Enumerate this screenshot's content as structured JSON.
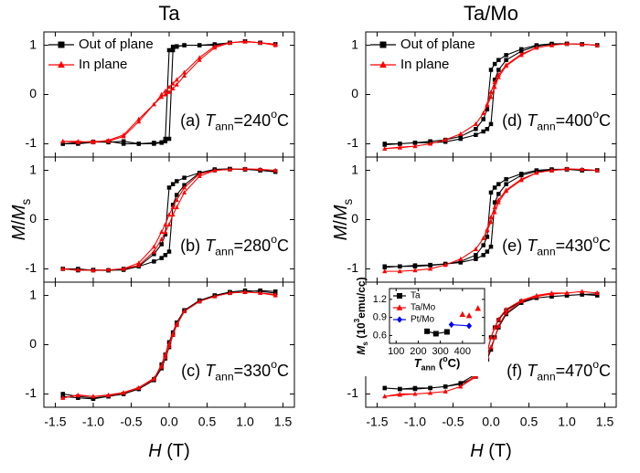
{
  "chart_data": [
    {
      "type": "line",
      "title": "Ta",
      "legend": "upper left",
      "annotation": [
        "(a)",
        "T",
        "ann",
        "=240",
        "o",
        "C"
      ],
      "xlim": [
        -1.65,
        1.65
      ],
      "ylim": [
        -1.27,
        1.27
      ],
      "yticks": [
        -1,
        0,
        1
      ],
      "x": [
        1.4,
        1.2,
        1.0,
        0.8,
        0.6,
        0.4,
        0.2,
        0.1,
        0.05,
        0,
        -0.05,
        -0.1,
        -0.2,
        -0.4,
        -0.6,
        -0.8,
        -1.0,
        -1.2,
        -1.4,
        -1.4,
        -1.2,
        -1.0,
        -0.8,
        -0.6,
        -0.4,
        -0.2,
        -0.1,
        -0.05,
        0,
        0.05,
        0.1,
        0.2,
        0.4,
        0.6,
        0.8,
        1.0,
        1.2,
        1.4
      ],
      "series": [
        {
          "name": "Out of plane",
          "color": "#000000",
          "marker": "square",
          "values": [
            1.02,
            1.05,
            1.08,
            1.05,
            1.0,
            1.0,
            1.0,
            0.98,
            0.97,
            0.9,
            -0.9,
            -0.97,
            -0.98,
            -1.0,
            -1.0,
            -0.95,
            -0.97,
            -1.0,
            -1.0,
            -1.0,
            -0.98,
            -0.96,
            -0.97,
            -0.95,
            -1.0,
            -1.0,
            -0.98,
            -0.95,
            -0.9,
            0.9,
            0.97,
            1.0,
            1.0,
            1.02,
            1.05,
            1.08,
            1.05,
            1.02
          ]
        },
        {
          "name": "In plane",
          "color": "#ff0000",
          "marker": "triangle",
          "values": [
            1.0,
            1.05,
            1.07,
            1.05,
            0.98,
            0.75,
            0.45,
            0.3,
            0.22,
            0.15,
            0.07,
            0,
            -0.2,
            -0.55,
            -0.85,
            -0.95,
            -0.95,
            -0.97,
            -0.95,
            -0.95,
            -0.95,
            -0.97,
            -0.93,
            -0.82,
            -0.5,
            -0.2,
            -0.05,
            0.0,
            0.05,
            0.12,
            0.2,
            0.38,
            0.7,
            0.95,
            1.05,
            1.08,
            1.05,
            1.02
          ]
        }
      ]
    },
    {
      "type": "line",
      "ylabel": [
        "M",
        "/",
        "M",
        "s"
      ],
      "annotation": [
        "(b)",
        "T",
        "ann",
        "=280",
        "o",
        "C"
      ],
      "xlim": [
        -1.65,
        1.65
      ],
      "ylim": [
        -1.27,
        1.27
      ],
      "yticks": [
        -1,
        0,
        1
      ],
      "x": [
        1.4,
        1.2,
        1.0,
        0.8,
        0.6,
        0.4,
        0.2,
        0.1,
        0.05,
        0,
        -0.05,
        -0.1,
        -0.2,
        -0.4,
        -0.6,
        -0.8,
        -1.0,
        -1.2,
        -1.4,
        -1.4,
        -1.2,
        -1.0,
        -0.8,
        -0.6,
        -0.4,
        -0.2,
        -0.1,
        -0.05,
        0,
        0.05,
        0.1,
        0.2,
        0.4,
        0.6,
        0.8,
        1.0,
        1.2,
        1.4
      ],
      "series": [
        {
          "color": "#000000",
          "marker": "square",
          "values": [
            0.97,
            1.0,
            1.02,
            1.02,
            1.0,
            0.95,
            0.85,
            0.78,
            0.72,
            0.65,
            -0.3,
            -0.5,
            -0.7,
            -0.95,
            -1.02,
            -1.03,
            -1.03,
            -1.0,
            -1.0,
            -1.0,
            -1.03,
            -1.02,
            -1.03,
            -1.0,
            -0.95,
            -0.85,
            -0.78,
            -0.72,
            -0.65,
            0.3,
            0.5,
            0.7,
            0.95,
            1.02,
            1.03,
            1.02,
            1.0,
            0.98
          ]
        },
        {
          "color": "#ff0000",
          "marker": "triangle",
          "values": [
            1.0,
            1.02,
            1.03,
            1.02,
            1.0,
            0.93,
            0.65,
            0.4,
            0.25,
            0.1,
            -0.1,
            -0.25,
            -0.55,
            -0.88,
            -1.0,
            -1.02,
            -1.03,
            -1.02,
            -1.0,
            -1.0,
            -1.02,
            -1.03,
            -1.02,
            -1.0,
            -0.93,
            -0.65,
            -0.4,
            -0.25,
            -0.1,
            0.1,
            0.25,
            0.55,
            0.88,
            1.0,
            1.02,
            1.03,
            1.02,
            1.0
          ]
        }
      ]
    },
    {
      "type": "line",
      "xlabel": [
        "H",
        "(T)"
      ],
      "annotation": [
        "(c)",
        "T",
        "ann",
        "=330",
        "o",
        "C"
      ],
      "xlim": [
        -1.65,
        1.65
      ],
      "ylim": [
        -1.27,
        1.27
      ],
      "yticks": [
        -1,
        0,
        1
      ],
      "xticks": [
        -1.5,
        {
          "value": -1.0,
          "label": "-1.0"
        },
        -0.5,
        {
          "value": 0,
          "label": "0.0"
        },
        0.5,
        {
          "value": 1.0,
          "label": "1.0"
        },
        1.5
      ],
      "x": [
        1.4,
        1.2,
        1.0,
        0.8,
        0.6,
        0.4,
        0.2,
        0.1,
        0.05,
        0,
        -0.05,
        -0.1,
        -0.2,
        -0.4,
        -0.6,
        -0.8,
        -1.0,
        -1.2,
        -1.4,
        -1.4,
        -1.2,
        -1.0,
        -0.8,
        -0.6,
        -0.4,
        -0.2,
        -0.1,
        -0.05,
        0,
        0.05,
        0.1,
        0.2,
        0.4,
        0.6,
        0.8,
        1.0,
        1.2,
        1.4
      ],
      "series": [
        {
          "color": "#000000",
          "marker": "square",
          "values": [
            1.05,
            1.08,
            1.1,
            1.07,
            1.0,
            0.9,
            0.7,
            0.45,
            0.25,
            0.05,
            -0.2,
            -0.4,
            -0.7,
            -0.9,
            -1.0,
            -1.05,
            -1.08,
            -1.05,
            -1.0,
            -1.05,
            -1.08,
            -1.1,
            -1.05,
            -1.0,
            -0.9,
            -0.72,
            -0.48,
            -0.28,
            -0.05,
            0.2,
            0.4,
            0.68,
            0.88,
            1.0,
            1.05,
            1.07,
            1.1,
            1.08
          ]
        },
        {
          "color": "#ff0000",
          "marker": "triangle",
          "values": [
            1.0,
            1.05,
            1.07,
            1.05,
            0.98,
            0.88,
            0.68,
            0.42,
            0.22,
            0.02,
            -0.2,
            -0.42,
            -0.7,
            -0.88,
            -0.98,
            -1.03,
            -1.05,
            -1.02,
            -1.08,
            -1.08,
            -1.03,
            -1.05,
            -1.02,
            -0.97,
            -0.87,
            -0.68,
            -0.45,
            -0.25,
            -0.03,
            0.2,
            0.4,
            0.68,
            0.88,
            0.98,
            1.05,
            1.07,
            1.05,
            1.02
          ]
        }
      ]
    },
    {
      "type": "line",
      "title": "Ta/Mo",
      "legend": "upper left",
      "annotation": [
        "(d)",
        "T",
        "ann",
        "=400",
        "o",
        "C"
      ],
      "xlim": [
        -1.65,
        1.65
      ],
      "ylim": [
        -1.27,
        1.27
      ],
      "yticks": [
        -1,
        0,
        1
      ],
      "x": [
        1.4,
        1.2,
        1.0,
        0.8,
        0.6,
        0.4,
        0.2,
        0.1,
        0.05,
        0,
        -0.05,
        -0.1,
        -0.2,
        -0.4,
        -0.6,
        -0.8,
        -1.0,
        -1.2,
        -1.4,
        -1.4,
        -1.2,
        -1.0,
        -0.8,
        -0.6,
        -0.4,
        -0.2,
        -0.1,
        -0.05,
        0,
        0.05,
        0.1,
        0.2,
        0.4,
        0.6,
        0.8,
        1.0,
        1.2,
        1.4
      ],
      "series": [
        {
          "name": "Out of plane",
          "color": "#000000",
          "marker": "square",
          "values": [
            1.0,
            1.02,
            1.03,
            1.03,
            1.0,
            0.92,
            0.8,
            0.7,
            0.62,
            0.5,
            -0.3,
            -0.5,
            -0.7,
            -0.85,
            -0.92,
            -0.95,
            -0.98,
            -1.0,
            -1.0,
            -1.02,
            -1.0,
            -0.98,
            -0.98,
            -0.96,
            -0.9,
            -0.82,
            -0.75,
            -0.7,
            -0.6,
            0.3,
            0.5,
            0.7,
            0.88,
            0.98,
            1.02,
            1.03,
            1.02,
            1.0
          ]
        },
        {
          "name": "In plane",
          "color": "#ff0000",
          "marker": "triangle",
          "values": [
            1.0,
            1.02,
            1.03,
            1.0,
            0.95,
            0.82,
            0.6,
            0.4,
            0.25,
            0.05,
            -0.2,
            -0.38,
            -0.6,
            -0.8,
            -0.92,
            -1.0,
            -1.05,
            -1.08,
            -1.1,
            -1.1,
            -1.07,
            -1.05,
            -1.0,
            -0.92,
            -0.8,
            -0.6,
            -0.38,
            -0.22,
            -0.05,
            0.15,
            0.35,
            0.58,
            0.8,
            0.95,
            1.0,
            1.03,
            1.02,
            1.0
          ]
        }
      ]
    },
    {
      "type": "line",
      "ylabel": [
        "M",
        "/",
        "M",
        "s"
      ],
      "annotation": [
        "(e)",
        "T",
        "ann",
        "=430",
        "o",
        "C"
      ],
      "xlim": [
        -1.65,
        1.65
      ],
      "ylim": [
        -1.27,
        1.27
      ],
      "yticks": [
        -1,
        0,
        1
      ],
      "x": [
        1.4,
        1.2,
        1.0,
        0.8,
        0.6,
        0.4,
        0.2,
        0.1,
        0.05,
        0,
        -0.05,
        -0.1,
        -0.2,
        -0.4,
        -0.6,
        -0.8,
        -1.0,
        -1.2,
        -1.4,
        -1.4,
        -1.2,
        -1.0,
        -0.8,
        -0.6,
        -0.4,
        -0.2,
        -0.1,
        -0.05,
        0,
        0.05,
        0.1,
        0.2,
        0.4,
        0.6,
        0.8,
        1.0,
        1.2,
        1.4
      ],
      "series": [
        {
          "color": "#000000",
          "marker": "square",
          "values": [
            1.0,
            1.0,
            1.02,
            1.02,
            1.0,
            0.93,
            0.82,
            0.72,
            0.65,
            0.55,
            -0.35,
            -0.52,
            -0.72,
            -0.85,
            -0.9,
            -0.93,
            -0.95,
            -0.95,
            -0.95,
            -0.97,
            -0.95,
            -0.93,
            -0.92,
            -0.9,
            -0.87,
            -0.8,
            -0.72,
            -0.65,
            -0.55,
            0.35,
            0.52,
            0.72,
            0.9,
            0.98,
            1.0,
            1.02,
            1.0,
            1.0
          ]
        },
        {
          "color": "#ff0000",
          "marker": "triangle",
          "values": [
            1.0,
            1.02,
            1.03,
            1.0,
            0.95,
            0.82,
            0.6,
            0.4,
            0.25,
            0.05,
            -0.2,
            -0.38,
            -0.6,
            -0.8,
            -0.92,
            -1.0,
            -1.03,
            -1.05,
            -1.05,
            -1.05,
            -1.05,
            -1.03,
            -1.0,
            -0.92,
            -0.8,
            -0.6,
            -0.38,
            -0.22,
            -0.05,
            0.15,
            0.35,
            0.58,
            0.8,
            0.95,
            1.0,
            1.03,
            1.02,
            1.0
          ]
        }
      ]
    },
    {
      "type": "line",
      "xlabel": [
        "H",
        "(T)"
      ],
      "annotation": [
        "(f)",
        "T",
        "ann",
        "=470",
        "o",
        "C"
      ],
      "xlim": [
        -1.65,
        1.65
      ],
      "ylim": [
        -1.27,
        1.27
      ],
      "yticks": [
        -1,
        0,
        1
      ],
      "xticks": [
        -1.5,
        {
          "value": -1.0,
          "label": "-1.0"
        },
        -0.5,
        {
          "value": 0,
          "label": "0.0"
        },
        0.5,
        {
          "value": 1.0,
          "label": "1.0"
        },
        1.5
      ],
      "x": [
        1.4,
        1.2,
        1.0,
        0.8,
        0.6,
        0.4,
        0.2,
        0.1,
        0.05,
        0,
        -0.05,
        -0.1,
        -0.2,
        -0.4,
        -0.6,
        -0.8,
        -1.0,
        -1.2,
        -1.4,
        -1.4,
        -1.2,
        -1.0,
        -0.8,
        -0.6,
        -0.4,
        -0.2,
        -0.1,
        -0.05,
        0,
        0.05,
        0.1,
        0.2,
        0.4,
        0.6,
        0.8,
        1.0,
        1.2,
        1.4
      ],
      "series": [
        {
          "color": "#000000",
          "marker": "square",
          "values": [
            1.0,
            1.02,
            1.0,
            0.98,
            0.95,
            0.88,
            0.7,
            0.5,
            0.35,
            0.15,
            -0.15,
            -0.35,
            -0.6,
            -0.78,
            -0.85,
            -0.88,
            -0.88,
            -0.9,
            -0.88,
            -0.88,
            -0.9,
            -0.9,
            -0.88,
            -0.85,
            -0.8,
            -0.65,
            -0.45,
            -0.3,
            -0.1,
            0.15,
            0.35,
            0.62,
            0.85,
            0.95,
            0.98,
            1.0,
            1.02,
            1.03
          ]
        },
        {
          "color": "#ff0000",
          "marker": "triangle",
          "values": [
            1.05,
            1.08,
            1.05,
            1.05,
            1.0,
            0.9,
            0.72,
            0.52,
            0.35,
            0.15,
            -0.15,
            -0.35,
            -0.62,
            -0.85,
            -0.95,
            -0.98,
            -1.0,
            -1.02,
            -1.05,
            -1.05,
            -1.0,
            -1.0,
            -0.98,
            -0.95,
            -0.85,
            -0.65,
            -0.42,
            -0.25,
            -0.05,
            0.15,
            0.38,
            0.65,
            0.88,
            0.98,
            1.03,
            1.05,
            1.08,
            1.05
          ]
        }
      ]
    },
    {
      "type": "line",
      "legend": "upper left",
      "xlabel": [
        "T",
        "ann",
        "(",
        "o",
        "C)"
      ],
      "ylabel": [
        "M",
        "s",
        "(10",
        "3",
        "emu/cc)"
      ],
      "xlim": [
        70,
        500
      ],
      "ylim": [
        0.47,
        1.38
      ],
      "xticks": [
        100,
        200,
        300,
        400
      ],
      "yticks": [
        0.6,
        0.9,
        1.2
      ],
      "series": [
        {
          "name": "Ta",
          "color": "#000000",
          "marker": "square",
          "x": [
            240,
            280,
            330
          ],
          "values": [
            0.67,
            0.63,
            0.66
          ]
        },
        {
          "name": "Ta/Mo",
          "color": "#ff0000",
          "marker": "triangle",
          "line": false,
          "x": [
            400,
            430,
            470
          ],
          "values": [
            0.95,
            0.93,
            1.05
          ]
        },
        {
          "name": "Pt/Mo",
          "color": "#0000ff",
          "marker": "diamond",
          "x": [
            350,
            430
          ],
          "values": [
            0.78,
            0.76
          ]
        }
      ]
    }
  ]
}
